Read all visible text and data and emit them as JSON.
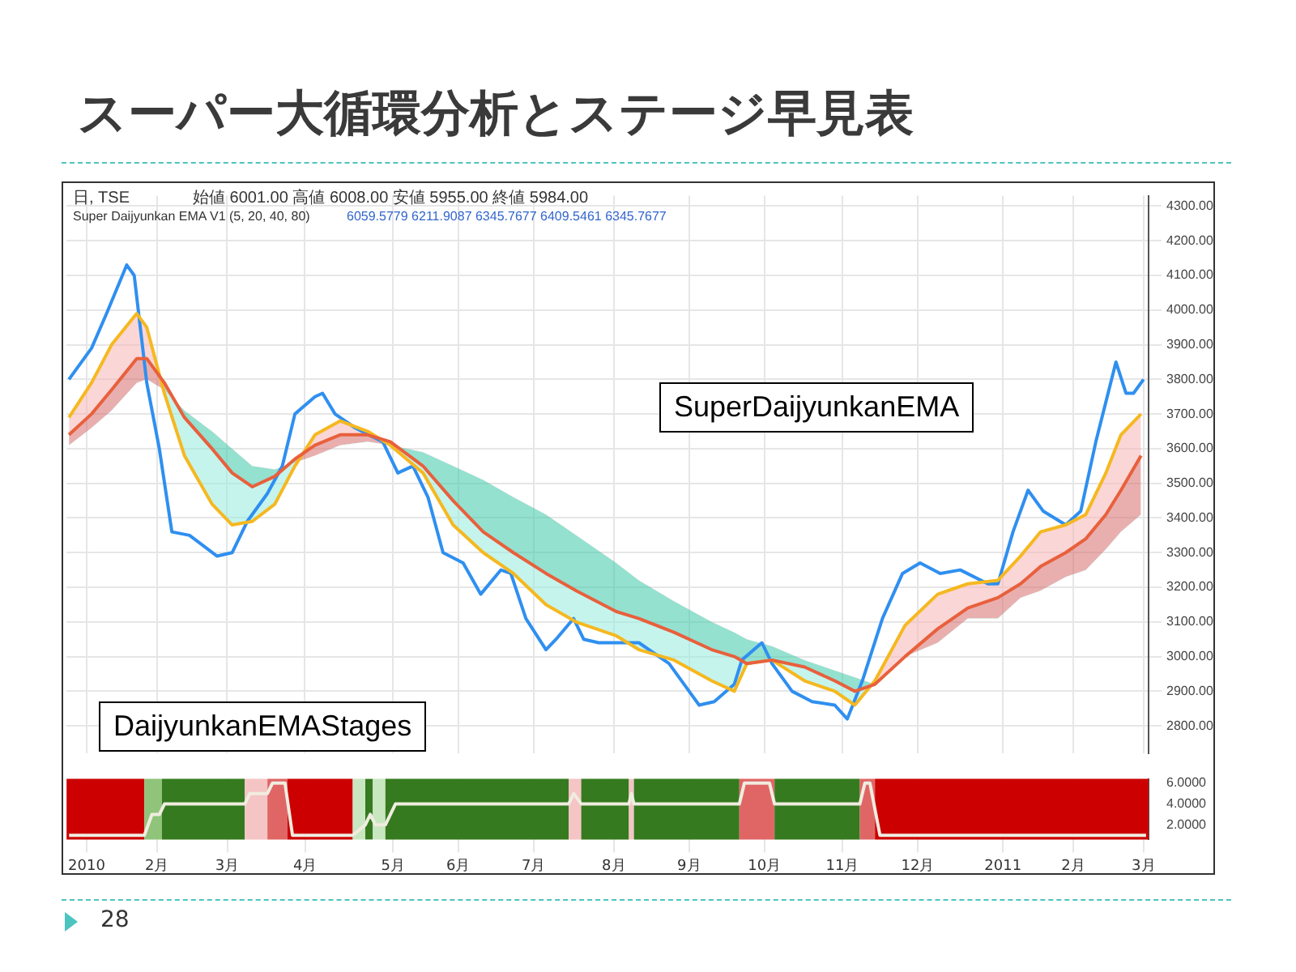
{
  "chart_data": [
    {
      "type": "line",
      "title": "スーパー大循環分析とステージ早見表",
      "annotations": [
        "日, TSE",
        "始値 6001.00 高値 6008.00 安値 5955.00 終値 5984.00",
        "Super Daijyunkan EMA V1 (5, 20, 40, 80)",
        "6059.5779 6211.9087 6345.7677 6409.5461 6345.7677",
        "SuperDaijyunkanEMA",
        "DaijyunkanEMAStages"
      ],
      "xlim": [
        "2009-12-27",
        "2011-03-03"
      ],
      "xticks": [
        "2010-01-04",
        "2010-02-01",
        "2010-03-01",
        "2010-04-01",
        "2010-05-06",
        "2010-06-01",
        "2010-07-01",
        "2010-08-02",
        "2010-09-01",
        "2010-10-01",
        "2010-11-01",
        "2010-12-01",
        "2011-01-04",
        "2011-02-01",
        "2011-03-01"
      ],
      "ylim": [
        2720,
        4330
      ],
      "yticks": [
        {
          "value": 2800,
          "label": "2800.00"
        },
        {
          "value": 2900,
          "label": "2900.00"
        },
        {
          "value": 3000,
          "label": "3000.00"
        },
        {
          "value": 3100,
          "label": "3100.00"
        },
        {
          "value": 3200,
          "label": "3200.00"
        },
        {
          "value": 3300,
          "label": "3300.00"
        },
        {
          "value": 3400,
          "label": "3400.00"
        },
        {
          "value": 3500,
          "label": "3500.00"
        },
        {
          "value": 3600,
          "label": "3600.00"
        },
        {
          "value": 3700,
          "label": "3700.00"
        },
        {
          "value": 3800,
          "label": "3800.00"
        },
        {
          "value": 3900,
          "label": "3900.00"
        },
        {
          "value": 4000,
          "label": "4000.00"
        },
        {
          "value": 4100,
          "label": "4100.00"
        },
        {
          "value": 4200,
          "label": "4200.00"
        },
        {
          "value": 4300,
          "label": "4300.00"
        }
      ],
      "grid": true,
      "marker": "none",
      "tick_labels": "y",
      "legend": false,
      "series": [
        {
          "color": "#2f8ff0",
          "x": [
            "2009-12-28",
            "2010-01-06",
            "2010-01-12",
            "2010-01-20",
            "2010-01-23",
            "2010-01-28",
            "2010-02-02",
            "2010-02-07",
            "2010-02-14",
            "2010-02-25",
            "2010-03-03",
            "2010-03-09",
            "2010-03-17",
            "2010-03-23",
            "2010-03-28",
            "2010-04-05",
            "2010-04-08",
            "2010-04-13",
            "2010-04-21",
            "2010-05-02",
            "2010-05-08",
            "2010-05-14",
            "2010-05-20",
            "2010-05-26",
            "2010-06-03",
            "2010-06-10",
            "2010-06-18",
            "2010-06-22",
            "2010-06-28",
            "2010-07-06",
            "2010-07-10",
            "2010-07-17",
            "2010-07-21",
            "2010-07-27",
            "2010-08-02",
            "2010-08-12",
            "2010-08-24",
            "2010-09-01",
            "2010-09-05",
            "2010-09-11",
            "2010-09-19",
            "2010-09-22",
            "2010-09-30",
            "2010-10-04",
            "2010-10-12",
            "2010-10-20",
            "2010-10-29",
            "2010-11-03",
            "2010-11-09",
            "2010-11-17",
            "2010-11-25",
            "2010-12-02",
            "2010-12-10",
            "2010-12-18",
            "2010-12-29",
            "2011-01-02",
            "2011-01-08",
            "2011-01-14",
            "2011-01-20",
            "2011-01-29",
            "2011-02-04",
            "2011-02-10",
            "2011-02-18",
            "2011-02-22",
            "2011-02-25",
            "2011-03-01"
          ],
          "values": [
            3800,
            3890,
            3990,
            4130,
            4100,
            3790,
            3600,
            3360,
            3350,
            3290,
            3300,
            3390,
            3470,
            3550,
            3700,
            3750,
            3760,
            3700,
            3660,
            3620,
            3530,
            3550,
            3460,
            3300,
            3270,
            3180,
            3250,
            3240,
            3110,
            3020,
            3050,
            3110,
            3050,
            3040,
            3040,
            3040,
            2980,
            2900,
            2860,
            2870,
            2920,
            2990,
            3040,
            2980,
            2900,
            2870,
            2860,
            2820,
            2930,
            3110,
            3240,
            3270,
            3240,
            3250,
            3210,
            3210,
            3360,
            3480,
            3420,
            3380,
            3420,
            3620,
            3850,
            3760,
            3760,
            3800
          ]
        },
        {
          "color": "#f5b820",
          "x": [
            "2009-12-28",
            "2010-01-06",
            "2010-01-14",
            "2010-01-24",
            "2010-01-28",
            "2010-02-04",
            "2010-02-12",
            "2010-02-23",
            "2010-03-03",
            "2010-03-11",
            "2010-03-20",
            "2010-03-28",
            "2010-04-05",
            "2010-04-15",
            "2010-04-26",
            "2010-05-05",
            "2010-05-18",
            "2010-05-30",
            "2010-06-11",
            "2010-06-23",
            "2010-07-06",
            "2010-07-18",
            "2010-08-03",
            "2010-08-12",
            "2010-08-26",
            "2010-09-10",
            "2010-09-19",
            "2010-09-24",
            "2010-10-04",
            "2010-10-17",
            "2010-10-29",
            "2010-11-06",
            "2010-11-14",
            "2010-11-26",
            "2010-12-09",
            "2010-12-21",
            "2011-01-02",
            "2011-01-11",
            "2011-01-19",
            "2011-01-29",
            "2011-02-06",
            "2011-02-14",
            "2011-02-20",
            "2011-02-28"
          ],
          "values": [
            3690,
            3790,
            3900,
            3990,
            3950,
            3760,
            3580,
            3440,
            3380,
            3390,
            3440,
            3550,
            3640,
            3680,
            3650,
            3610,
            3530,
            3380,
            3300,
            3240,
            3150,
            3100,
            3060,
            3020,
            2990,
            2930,
            2900,
            2980,
            2990,
            2930,
            2900,
            2860,
            2930,
            3090,
            3180,
            3210,
            3220,
            3290,
            3360,
            3380,
            3410,
            3530,
            3640,
            3700
          ],
          "upper": [
            3690,
            3790,
            3900,
            3990,
            3950,
            3760,
            3580,
            3440,
            3380,
            3390,
            3440,
            3550,
            3640,
            3680,
            3650,
            3610,
            3530,
            3380,
            3300,
            3240,
            3150,
            3100,
            3060,
            3020,
            2990,
            2930,
            2900,
            2980,
            2990,
            2930,
            2900,
            2860,
            2930,
            3090,
            3180,
            3210,
            3220,
            3290,
            3360,
            3380,
            3410,
            3530,
            3640,
            3700
          ],
          "lower": [
            3640,
            3700,
            3770,
            3860,
            3860,
            3790,
            3690,
            3600,
            3530,
            3490,
            3520,
            3570,
            3610,
            3640,
            3640,
            3620,
            3550,
            3450,
            3360,
            3300,
            3240,
            3190,
            3130,
            3110,
            3070,
            3020,
            3000,
            2980,
            2990,
            2970,
            2930,
            2900,
            2920,
            3000,
            3080,
            3140,
            3170,
            3210,
            3260,
            3300,
            3340,
            3410,
            3480,
            3580
          ]
        },
        {
          "color": "#e8603c",
          "x": [
            "2009-12-28",
            "2010-01-06",
            "2010-01-14",
            "2010-01-24",
            "2010-01-28",
            "2010-02-04",
            "2010-02-12",
            "2010-02-23",
            "2010-03-03",
            "2010-03-11",
            "2010-03-20",
            "2010-03-28",
            "2010-04-05",
            "2010-04-15",
            "2010-04-26",
            "2010-05-05",
            "2010-05-18",
            "2010-05-30",
            "2010-06-11",
            "2010-06-23",
            "2010-07-06",
            "2010-07-18",
            "2010-08-03",
            "2010-08-12",
            "2010-08-26",
            "2010-09-10",
            "2010-09-19",
            "2010-09-24",
            "2010-10-04",
            "2010-10-17",
            "2010-10-29",
            "2010-11-06",
            "2010-11-14",
            "2010-11-26",
            "2010-12-09",
            "2010-12-21",
            "2011-01-02",
            "2011-01-11",
            "2011-01-19",
            "2011-01-29",
            "2011-02-06",
            "2011-02-14",
            "2011-02-20",
            "2011-02-28"
          ],
          "values": [
            3640,
            3700,
            3770,
            3860,
            3860,
            3790,
            3690,
            3600,
            3530,
            3490,
            3520,
            3570,
            3610,
            3640,
            3640,
            3620,
            3550,
            3450,
            3360,
            3300,
            3240,
            3190,
            3130,
            3110,
            3070,
            3020,
            3000,
            2980,
            2990,
            2970,
            2930,
            2900,
            2920,
            3000,
            3080,
            3140,
            3170,
            3210,
            3260,
            3300,
            3340,
            3410,
            3480,
            3580
          ],
          "upper": [
            3640,
            3700,
            3770,
            3860,
            3860,
            3790,
            3690,
            3600,
            3530,
            3490,
            3520,
            3570,
            3610,
            3640,
            3640,
            3620,
            3550,
            3450,
            3360,
            3300,
            3240,
            3190,
            3130,
            3110,
            3070,
            3020,
            3000,
            2980,
            2990,
            2970,
            2930,
            2900,
            2920,
            3000,
            3080,
            3140,
            3170,
            3210,
            3260,
            3300,
            3340,
            3410,
            3480,
            3580
          ],
          "lower": [
            3610,
            3660,
            3710,
            3790,
            3800,
            3770,
            3710,
            3650,
            3600,
            3550,
            3540,
            3560,
            3580,
            3610,
            3620,
            3610,
            3590,
            3550,
            3510,
            3460,
            3410,
            3350,
            3270,
            3220,
            3160,
            3100,
            3070,
            3050,
            3030,
            2990,
            2960,
            2940,
            2920,
            3000,
            3040,
            3110,
            3110,
            3170,
            3190,
            3230,
            3250,
            3310,
            3360,
            3410
          ]
        }
      ]
    },
    {
      "type": "line",
      "annotations": [
        "28"
      ],
      "xlim": [
        "2009-12-27",
        "2011-03-03"
      ],
      "xticks": [
        {
          "value": "2010-01-04",
          "label": "2010"
        },
        {
          "value": "2010-02-01",
          "label": "2月"
        },
        {
          "value": "2010-03-01",
          "label": "3月"
        },
        {
          "value": "2010-04-01",
          "label": "4月"
        },
        {
          "value": "2010-05-06",
          "label": "5月"
        },
        {
          "value": "2010-06-01",
          "label": "6月"
        },
        {
          "value": "2010-07-01",
          "label": "7月"
        },
        {
          "value": "2010-08-02",
          "label": "8月"
        },
        {
          "value": "2010-09-01",
          "label": "9月"
        },
        {
          "value": "2010-10-01",
          "label": "10月"
        },
        {
          "value": "2010-11-01",
          "label": "11月"
        },
        {
          "value": "2010-12-01",
          "label": "12月"
        },
        {
          "value": "2011-01-04",
          "label": "2011"
        },
        {
          "value": "2011-02-01",
          "label": "2月"
        },
        {
          "value": "2011-03-01",
          "label": "3月"
        }
      ],
      "ylim": [
        0.6,
        6.4
      ],
      "yticks": [
        {
          "value": 2,
          "label": "2.0000"
        },
        {
          "value": 4,
          "label": "4.0000"
        },
        {
          "value": 6,
          "label": "6.0000"
        }
      ],
      "grid": "x",
      "marker": "none",
      "legend": false,
      "bands": [
        {
          "axis": "x",
          "from": "2009-12-27",
          "to": "2010-01-27",
          "color": "#cc0000"
        },
        {
          "axis": "x",
          "from": "2010-01-27",
          "to": "2010-02-03",
          "color": "#8fc47a"
        },
        {
          "axis": "x",
          "from": "2010-02-03",
          "to": "2010-03-08",
          "color": "#357a1f"
        },
        {
          "axis": "x",
          "from": "2010-03-08",
          "to": "2010-03-17",
          "color": "#f5c4c4"
        },
        {
          "axis": "x",
          "from": "2010-03-17",
          "to": "2010-03-25",
          "color": "#e06666"
        },
        {
          "axis": "x",
          "from": "2010-03-25",
          "to": "2010-04-20",
          "color": "#cc0000"
        },
        {
          "axis": "x",
          "from": "2010-04-20",
          "to": "2010-04-25",
          "color": "#c8e6c0"
        },
        {
          "axis": "x",
          "from": "2010-04-25",
          "to": "2010-04-28",
          "color": "#357a1f"
        },
        {
          "axis": "x",
          "from": "2010-04-28",
          "to": "2010-05-03",
          "color": "#c8e6c0"
        },
        {
          "axis": "x",
          "from": "2010-05-03",
          "to": "2010-07-15",
          "color": "#357a1f"
        },
        {
          "axis": "x",
          "from": "2010-07-15",
          "to": "2010-07-20",
          "color": "#f5c4c4"
        },
        {
          "axis": "x",
          "from": "2010-07-20",
          "to": "2010-08-08",
          "color": "#357a1f"
        },
        {
          "axis": "x",
          "from": "2010-08-08",
          "to": "2010-08-10",
          "color": "#f5c4c4"
        },
        {
          "axis": "x",
          "from": "2010-08-10",
          "to": "2010-09-21",
          "color": "#357a1f"
        },
        {
          "axis": "x",
          "from": "2010-09-21",
          "to": "2010-10-05",
          "color": "#e06666"
        },
        {
          "axis": "x",
          "from": "2010-10-05",
          "to": "2010-11-08",
          "color": "#357a1f"
        },
        {
          "axis": "x",
          "from": "2010-11-08",
          "to": "2010-11-14",
          "color": "#e06666"
        },
        {
          "axis": "x",
          "from": "2010-11-14",
          "to": "2011-03-03",
          "color": "#cc0000"
        }
      ],
      "series": [
        {
          "color": "#f0ece0",
          "x": [
            "2009-12-28",
            "2010-01-27",
            "2010-01-30",
            "2010-02-02",
            "2010-02-04",
            "2010-03-08",
            "2010-03-10",
            "2010-03-17",
            "2010-03-19",
            "2010-03-24",
            "2010-03-27",
            "2010-04-20",
            "2010-04-25",
            "2010-04-27",
            "2010-04-29",
            "2010-05-03",
            "2010-05-07",
            "2010-07-15",
            "2010-07-17",
            "2010-07-20",
            "2010-08-08",
            "2010-08-09",
            "2010-08-10",
            "2010-09-21",
            "2010-09-23",
            "2010-10-03",
            "2010-10-05",
            "2010-11-08",
            "2010-11-10",
            "2010-11-12",
            "2010-11-16",
            "2011-03-02"
          ],
          "values": [
            1,
            1,
            3,
            3,
            4,
            4,
            5,
            5,
            6,
            6,
            1,
            1,
            2,
            3,
            2,
            2,
            4,
            4,
            5,
            4,
            4,
            5,
            4,
            4,
            6,
            6,
            4,
            4,
            6,
            6,
            1,
            1
          ]
        }
      ]
    }
  ]
}
